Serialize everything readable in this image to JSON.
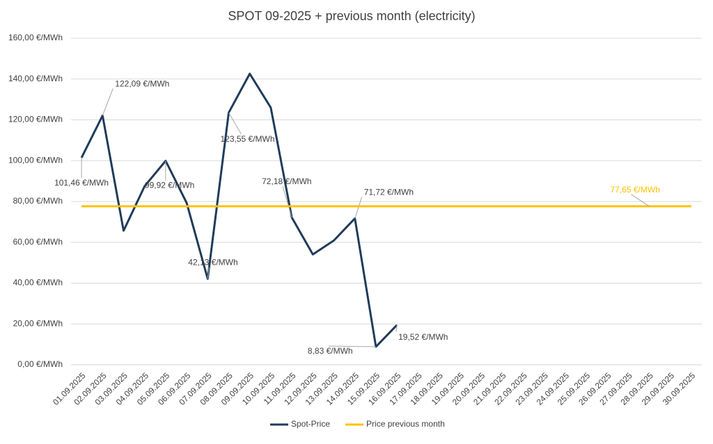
{
  "chart_data": {
    "type": "line",
    "title": "SPOT 09-2025 + previous month (electricity)",
    "categories": [
      "01.09.2025",
      "02.09.2025",
      "03.09.2025",
      "04.09.2025",
      "05.09.2025",
      "06.09.2025",
      "07.09.2025",
      "08.09.2025",
      "09.09.2025",
      "10.09.2025",
      "11.09.2025",
      "12.09.2025",
      "13.09.2025",
      "14.09.2025",
      "15.09.2025",
      "16.09.2025",
      "17.09.2025",
      "18.09.2025",
      "19.09.2025",
      "20.09.2025",
      "21.09.2025",
      "22.09.2025",
      "23.09.2025",
      "24.09.2025",
      "25.09.2025",
      "26.09.2025",
      "27.09.2025",
      "28.09.2025",
      "29.09.2025",
      "30.09.2025"
    ],
    "series": [
      {
        "name": "Spot-Price",
        "color": "#1f3c5a",
        "values": [
          101.46,
          122.09,
          65.7,
          87.5,
          99.92,
          79.3,
          42.13,
          123.55,
          142.6,
          126.0,
          72.18,
          54.1,
          60.9,
          71.72,
          8.83,
          19.52,
          null,
          null,
          null,
          null,
          null,
          null,
          null,
          null,
          null,
          null,
          null,
          null,
          null,
          null
        ],
        "value_labels": [
          "101,46 €/MWh",
          "122,09 €/MWh",
          null,
          null,
          "99,92 €/MWh",
          null,
          "42,13 €/MWh",
          "123,55 €/MWh",
          null,
          null,
          "72,18 €/MWh",
          null,
          null,
          "71,72 €/MWh",
          "8,83 €/MWh",
          "19,52 €/MWh",
          null,
          null,
          null,
          null,
          null,
          null,
          null,
          null,
          null,
          null,
          null,
          null,
          null,
          null
        ]
      },
      {
        "name": "Price previous month",
        "color": "#ffc000",
        "values": [
          77.65,
          77.65,
          77.65,
          77.65,
          77.65,
          77.65,
          77.65,
          77.65,
          77.65,
          77.65,
          77.65,
          77.65,
          77.65,
          77.65,
          77.65,
          77.65,
          77.65,
          77.65,
          77.65,
          77.65,
          77.65,
          77.65,
          77.65,
          77.65,
          77.65,
          77.65,
          77.65,
          77.65,
          77.65,
          77.65
        ],
        "value_labels": [
          null,
          null,
          null,
          null,
          null,
          null,
          null,
          null,
          null,
          null,
          null,
          null,
          null,
          null,
          null,
          null,
          null,
          null,
          null,
          null,
          null,
          null,
          null,
          null,
          null,
          null,
          null,
          "77,65 €/MWh",
          null,
          null
        ]
      }
    ],
    "ylim": [
      0,
      160
    ],
    "yticks": [
      {
        "value": 0,
        "label": "0,00 €/MWh"
      },
      {
        "value": 20,
        "label": "20,00 €/MWh"
      },
      {
        "value": 40,
        "label": "40,00 €/MWh"
      },
      {
        "value": 60,
        "label": "60,00 €/MWh"
      },
      {
        "value": 80,
        "label": "80,00 €/MWh"
      },
      {
        "value": 100,
        "label": "100,00 €/MWh"
      },
      {
        "value": 120,
        "label": "120,00 €/MWh"
      },
      {
        "value": 140,
        "label": "140,00 €/MWh"
      },
      {
        "value": 160,
        "label": "160,00 €/MWh"
      }
    ],
    "grid": true,
    "legend": "bottom"
  }
}
